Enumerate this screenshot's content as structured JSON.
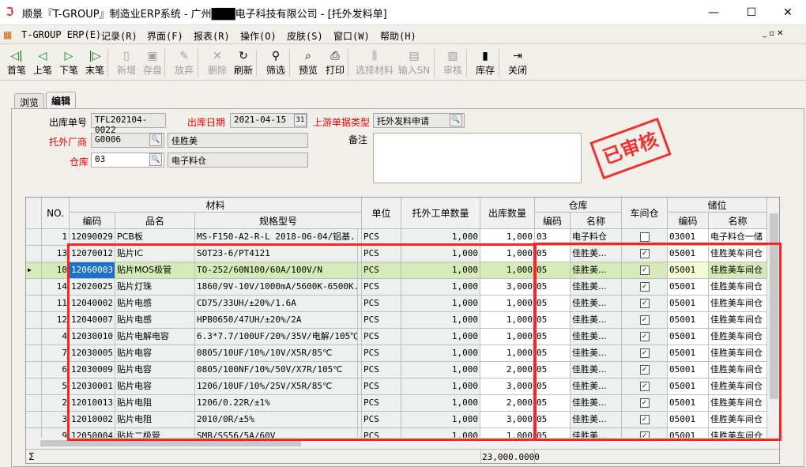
{
  "window": {
    "title": "顺景『T-GROUP』制造业ERP系统 - 广州███电子科技有限公司 - [托外发料单]"
  },
  "menu": [
    "T-GROUP ERP(E)",
    "记录(R)",
    "界面(F)",
    "报表(R)",
    "操作(O)",
    "皮肤(S)",
    "窗口(W)",
    "帮助(H)"
  ],
  "toolbar": [
    {
      "label": "首笔",
      "icon": "first-icon",
      "enabled": true
    },
    {
      "label": "上笔",
      "icon": "prev-icon",
      "enabled": true
    },
    {
      "label": "下笔",
      "icon": "next-icon",
      "enabled": true
    },
    {
      "label": "末笔",
      "icon": "last-icon",
      "enabled": true
    },
    {
      "label": "新增",
      "icon": "new-icon",
      "enabled": false
    },
    {
      "label": "存盘",
      "icon": "save-icon",
      "enabled": false
    },
    {
      "label": "放弃",
      "icon": "discard-icon",
      "enabled": false
    },
    {
      "label": "删除",
      "icon": "delete-icon",
      "enabled": false
    },
    {
      "label": "刷新",
      "icon": "refresh-icon",
      "enabled": true
    },
    {
      "label": "筛选",
      "icon": "filter-icon",
      "enabled": true
    },
    {
      "label": "预览",
      "icon": "preview-icon",
      "enabled": true
    },
    {
      "label": "打印",
      "icon": "print-icon",
      "enabled": true
    },
    {
      "label": "选择材料",
      "icon": "select-material-icon",
      "enabled": false
    },
    {
      "label": "输入SN",
      "icon": "input-sn-icon",
      "enabled": false
    },
    {
      "label": "审核",
      "icon": "audit-icon",
      "enabled": false
    },
    {
      "label": "库存",
      "icon": "stock-icon",
      "enabled": true
    },
    {
      "label": "关闭",
      "icon": "close-icon",
      "enabled": true
    }
  ],
  "tabs": [
    "浏览",
    "编辑"
  ],
  "form": {
    "order_no_label": "出库单号",
    "order_no": "TFL202104-0022",
    "date_label": "出库日期",
    "date": "2021-04-15",
    "upstream_label": "上游单据类型",
    "upstream": "托外发料申请",
    "vendor_label": "托外厂商",
    "vendor_code": "G0006",
    "vendor_name": "佳胜美",
    "warehouse_label": "仓库",
    "warehouse_code": "03",
    "warehouse_name": "电子料仓",
    "remark_label": "备注",
    "remark": ""
  },
  "stamp": "已审核",
  "grid": {
    "headers": {
      "no": "NO.",
      "material": "材料",
      "code": "编码",
      "name": "品名",
      "spec": "规格型号",
      "unit": "单位",
      "wo_qty": "托外工单数量",
      "out_qty": "出库数量",
      "wh": "仓库",
      "wh_code": "编码",
      "wh_name": "名称",
      "workshop": "车间仓",
      "loc": "储位",
      "loc_code": "编码",
      "loc_name": "名称"
    },
    "rows": [
      [
        "1",
        "12090029",
        "PCB板",
        "MS-F150-A2-R-L 2018-06-04/铝基...",
        "PCS",
        "1,000",
        "1,000",
        "03",
        "电子料仓",
        false,
        "03001",
        "电子料仓一储"
      ],
      [
        "13",
        "12070012",
        "贴片IC",
        "SOT23-6/PT4121",
        "PCS",
        "1,000",
        "1,000",
        "05",
        "佳胜美...",
        true,
        "05001",
        "佳胜美车间仓"
      ],
      [
        "10",
        "12060003",
        "贴片MOS极管",
        "TO-252/60N100/60A/100V/N",
        "PCS",
        "1,000",
        "1,000",
        "05",
        "佳胜美...",
        true,
        "05001",
        "佳胜美车间仓"
      ],
      [
        "14",
        "12020025",
        "贴片灯珠",
        "1860/9V-10V/1000mA/5600K-6500K...",
        "PCS",
        "1,000",
        "3,000",
        "05",
        "佳胜美...",
        true,
        "05001",
        "佳胜美车间仓"
      ],
      [
        "11",
        "12040002",
        "贴片电感",
        "CD75/33UH/±20%/1.6A",
        "PCS",
        "1,000",
        "1,000",
        "05",
        "佳胜美...",
        true,
        "05001",
        "佳胜美车间仓"
      ],
      [
        "12",
        "12040007",
        "贴片电感",
        "HPB0650/47UH/±20%/2A",
        "PCS",
        "1,000",
        "1,000",
        "05",
        "佳胜美...",
        true,
        "05001",
        "佳胜美车间仓"
      ],
      [
        "4",
        "12030010",
        "贴片电解电容",
        "6.3*7.7/100UF/20%/35V/电解/105℃",
        "PCS",
        "1,000",
        "1,000",
        "05",
        "佳胜美...",
        true,
        "05001",
        "佳胜美车间仓"
      ],
      [
        "7",
        "12030005",
        "贴片电容",
        "0805/10UF/10%/10V/X5R/85℃",
        "PCS",
        "1,000",
        "1,000",
        "05",
        "佳胜美...",
        true,
        "05001",
        "佳胜美车间仓"
      ],
      [
        "6",
        "12030009",
        "贴片电容",
        "0805/100NF/10%/50V/X7R/105℃",
        "PCS",
        "1,000",
        "2,000",
        "05",
        "佳胜美...",
        true,
        "05001",
        "佳胜美车间仓"
      ],
      [
        "5",
        "12030001",
        "贴片电容",
        "1206/10UF/10%/25V/X5R/85℃",
        "PCS",
        "1,000",
        "3,000",
        "05",
        "佳胜美...",
        true,
        "05001",
        "佳胜美车间仓"
      ],
      [
        "2",
        "12010013",
        "贴片电阻",
        "1206/0.22R/±1%",
        "PCS",
        "1,000",
        "2,000",
        "05",
        "佳胜美...",
        true,
        "05001",
        "佳胜美车间仓"
      ],
      [
        "3",
        "12010002",
        "贴片电阻",
        "2010/0R/±5%",
        "PCS",
        "1,000",
        "3,000",
        "05",
        "佳胜美...",
        true,
        "05001",
        "佳胜美车间仓"
      ],
      [
        "9",
        "12050004",
        "贴片二极管",
        "SMB/SS56/5A/60V",
        "PCS",
        "1,000",
        "1,000",
        "05",
        "佳胜美...",
        true,
        "05001",
        "佳胜美车间仓"
      ]
    ],
    "selected_row": 2,
    "footer": {
      "sigma": "Σ",
      "out_qty_total": "23,000.0000"
    }
  },
  "colors": {
    "highlight": "#d5eab8",
    "required_label": "#e00000",
    "annotation": "#ff2222"
  }
}
